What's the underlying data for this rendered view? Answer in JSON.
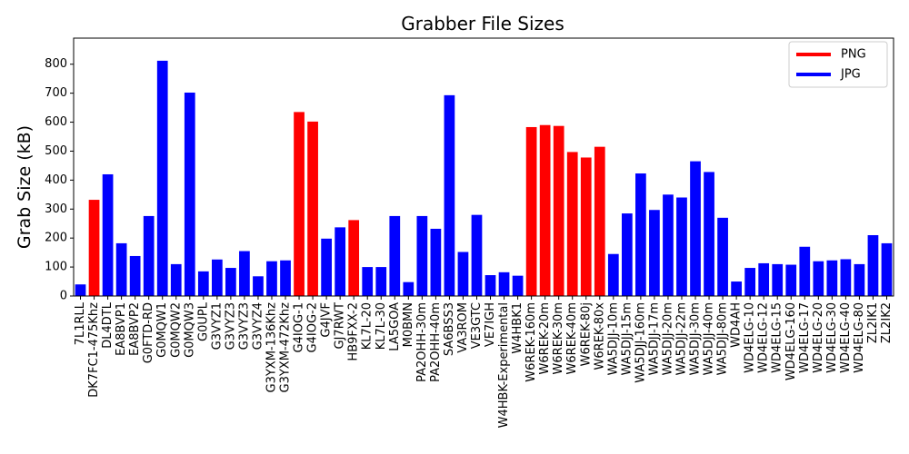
{
  "chart_data": {
    "type": "bar",
    "title": "Grabber File Sizes",
    "xlabel": "",
    "ylabel": "Grab Size (kB)",
    "ylim": [
      0,
      890
    ],
    "yticks": [
      0,
      100,
      200,
      300,
      400,
      500,
      600,
      700,
      800
    ],
    "grid": false,
    "legend_position": "top-right",
    "legend": [
      {
        "name": "PNG",
        "color": "#ff0000"
      },
      {
        "name": "JPG",
        "color": "#0000ff"
      }
    ],
    "categories": [
      "7L1RLL",
      "DK7FC1-475Khz",
      "DL4DTL",
      "EA8BVP1",
      "EA8BVP2",
      "G0FTD-RD",
      "G0MQW1",
      "G0MQW2",
      "G0MQW3",
      "G0UPL",
      "G3VYZ1",
      "G3VYZ3",
      "G3VYZ3",
      "G3VYZ4",
      "G3YXM-136Khz",
      "G3YXM-472Khz",
      "G4IOG-1",
      "G4IOG-2",
      "G4JVF",
      "GJ7RWT",
      "HB9FXX-2",
      "KL7L-20",
      "KL7L-30",
      "LA5GOA",
      "M0BMN",
      "PA2OHH-30m",
      "PA2OHH-40m",
      "SA6BSS3",
      "VA3ROM",
      "VE3GTC",
      "VE7IGH",
      "W4HBK-Experimental",
      "W4HBK1",
      "W6REK-160m",
      "W6REK-20m",
      "W6REK-30m",
      "W6REK-40m",
      "W6REK-80j",
      "W6REK-80x",
      "WA5DJJ-10m",
      "WA5DJJ-15m",
      "WA5DJJ-160m",
      "WA5DJJ-17m",
      "WA5DJJ-20m",
      "WA5DJJ-22m",
      "WA5DJJ-30m",
      "WA5DJJ-40m",
      "WA5DJJ-80m",
      "WD4AH",
      "WD4ELG-10",
      "WD4ELG-12",
      "WD4ELG-15",
      "WD4ELG-160",
      "WD4ELG-17",
      "WD4ELG-20",
      "WD4ELG-30",
      "WD4ELG-40",
      "WD4ELG-80",
      "ZL2IK1",
      "ZL2IK2"
    ],
    "values": [
      40,
      332,
      420,
      182,
      138,
      276,
      812,
      110,
      702,
      85,
      126,
      97,
      155,
      68,
      120,
      123,
      635,
      602,
      198,
      237,
      262,
      100,
      100,
      276,
      48,
      276,
      232,
      693,
      152,
      280,
      72,
      82,
      70,
      583,
      590,
      587,
      497,
      478,
      515,
      145,
      285,
      423,
      297,
      350,
      340,
      465,
      428,
      270,
      50,
      97,
      113,
      110,
      108,
      170,
      120,
      123,
      127,
      110,
      210,
      182
    ],
    "formats": [
      "JPG",
      "PNG",
      "JPG",
      "JPG",
      "JPG",
      "JPG",
      "JPG",
      "JPG",
      "JPG",
      "JPG",
      "JPG",
      "JPG",
      "JPG",
      "JPG",
      "JPG",
      "JPG",
      "PNG",
      "PNG",
      "JPG",
      "JPG",
      "PNG",
      "JPG",
      "JPG",
      "JPG",
      "JPG",
      "JPG",
      "JPG",
      "JPG",
      "JPG",
      "JPG",
      "JPG",
      "JPG",
      "JPG",
      "PNG",
      "PNG",
      "PNG",
      "PNG",
      "PNG",
      "PNG",
      "JPG",
      "JPG",
      "JPG",
      "JPG",
      "JPG",
      "JPG",
      "JPG",
      "JPG",
      "JPG",
      "JPG",
      "JPG",
      "JPG",
      "JPG",
      "JPG",
      "JPG",
      "JPG",
      "JPG",
      "JPG",
      "JPG",
      "JPG",
      "JPG"
    ]
  }
}
